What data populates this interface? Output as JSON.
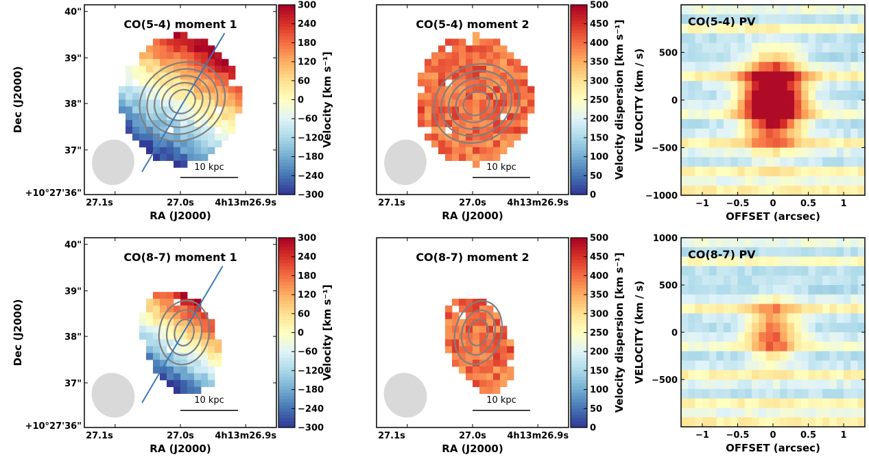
{
  "figure": {
    "width": 1267,
    "height": 670
  },
  "chart_data": [
    {
      "id": "m1_co54",
      "type": "heatmap",
      "title": "CO(5-4) moment 1",
      "xlabel": "RA (J2000)",
      "ylabel": "Dec (J2000)",
      "xticks": [
        "27.1s",
        "27.0s",
        "4h13m26.9s"
      ],
      "yticks": [
        "40\"",
        "39\"",
        "38\"",
        "37\"",
        "+10°27'36\""
      ],
      "colorbar": {
        "label": "Velocity [km s⁻¹]",
        "min": -300,
        "max": 300,
        "ticks": [
          "300",
          "240",
          "180",
          "120",
          "60",
          "0",
          "−60",
          "−120",
          "−180",
          "−240",
          "−300"
        ]
      },
      "scale_bar": "10 kpc"
    },
    {
      "id": "m2_co54",
      "type": "heatmap",
      "title": "CO(5-4) moment 2",
      "xticks": [
        "27.1s",
        "27.0s",
        "4h13m26.9s"
      ],
      "xlabel": "RA (J2000)",
      "colorbar": {
        "label": "Velocity dispersion [km s⁻¹]",
        "min": 0,
        "max": 500,
        "ticks": [
          "500",
          "450",
          "400",
          "350",
          "300",
          "250",
          "200",
          "150",
          "100",
          "50",
          "0"
        ]
      },
      "scale_bar": "10 kpc"
    },
    {
      "id": "pv_co54",
      "type": "heatmap",
      "title": "CO(5-4) PV",
      "xlabel": "OFFSET (arcsec)",
      "ylabel": "VELOCITY (km / s)",
      "xticks": [
        "−1",
        "−0.5",
        "0",
        "0.5",
        "1"
      ],
      "yticks": [
        "500",
        "0",
        "−500",
        "−1000"
      ],
      "xlim": [
        -1.3,
        1.3
      ],
      "ylim": [
        -1000,
        1000
      ]
    },
    {
      "id": "m1_co87",
      "type": "heatmap",
      "title": "CO(8-7) moment 1",
      "xlabel": "RA (J2000)",
      "ylabel": "Dec (J2000)",
      "xticks": [
        "27.1s",
        "27.0s",
        "4h13m26.9s"
      ],
      "yticks": [
        "40\"",
        "39\"",
        "38\"",
        "37\"",
        "+10°27'36\""
      ],
      "colorbar": {
        "label": "Velocity [km s⁻¹]",
        "min": -300,
        "max": 300,
        "ticks": [
          "300",
          "240",
          "180",
          "120",
          "60",
          "0",
          "−60",
          "−120",
          "−180",
          "−240",
          "−300"
        ]
      },
      "scale_bar": "10 kpc"
    },
    {
      "id": "m2_co87",
      "type": "heatmap",
      "title": "CO(8-7) moment 2",
      "xticks": [
        "27.1s",
        "27.0s",
        "4h13m26.9s"
      ],
      "xlabel": "RA (J2000)",
      "colorbar": {
        "label": "Velocity dispersion [km s⁻¹]",
        "min": 0,
        "max": 500,
        "ticks": [
          "500",
          "450",
          "400",
          "350",
          "300",
          "250",
          "200",
          "150",
          "100",
          "50",
          "0"
        ]
      },
      "scale_bar": "10 kpc"
    },
    {
      "id": "pv_co87",
      "type": "heatmap",
      "title": "CO(8-7) PV",
      "xlabel": "OFFSET (arcsec)",
      "ylabel": "VELOCITY (km / s)",
      "xticks": [
        "−1",
        "−0.5",
        "0",
        "0.5",
        "1"
      ],
      "yticks": [
        "1000",
        "500",
        "0",
        "−500"
      ],
      "xlim": [
        -1.3,
        1.3
      ],
      "ylim": [
        -1000,
        1000
      ]
    }
  ]
}
